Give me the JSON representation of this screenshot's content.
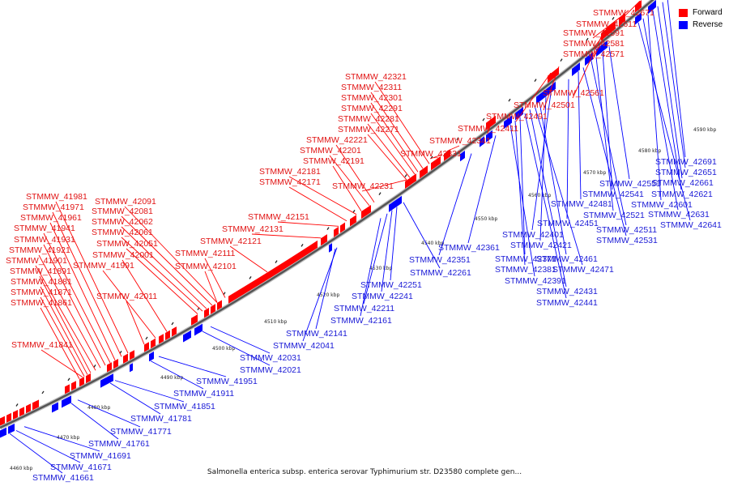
{
  "caption": "Salmonella enterica subsp. enterica serovar Typhimurium str. D23580 complete gen...",
  "legend": [
    {
      "label": "Forward",
      "color": "#ff0000"
    },
    {
      "label": "Reverse",
      "color": "#0000ff"
    }
  ],
  "colors": {
    "forward": "#ff0000",
    "reverse": "#0000ff",
    "forward_text": "#e11414",
    "reverse_text": "#1a1ad6",
    "backbone": "#555555"
  },
  "axis_ticks": [
    "4460 kbp",
    "4470 kbp",
    "4480 kbp",
    "4490 kbp",
    "4500 kbp",
    "4510 kbp",
    "4520 kbp",
    "4530 kbp",
    "4540 kbp",
    "4550 kbp",
    "4560 kbp",
    "4570 kbp",
    "4580 kbp",
    "4590 kbp"
  ],
  "forward_labels": [
    "STMMW_42671",
    "STMMW_42611",
    "STMMW_42591",
    "STMMW_42581",
    "STMMW_42571",
    "STMMW_42561",
    "STMMW_42501",
    "STMMW_42491",
    "STMMW_42411",
    "STMMW_42341",
    "STMMW_42331",
    "STMMW_42321",
    "STMMW_42311",
    "STMMW_42301",
    "STMMW_42291",
    "STMMW_42281",
    "STMMW_42271",
    "STMMW_42221",
    "STMMW_42201",
    "STMMW_42191",
    "STMMW_42181",
    "STMMW_42171",
    "STMMW_42231",
    "STMMW_42151",
    "STMMW_42131",
    "STMMW_42121",
    "STMMW_42111",
    "STMMW_42101",
    "STMMW_42091",
    "STMMW_42081",
    "STMMW_42062",
    "STMMW_42061",
    "STMMW_42051",
    "STMMW_42001",
    "STMMW_41991",
    "STMMW_42011",
    "STMMW_41981",
    "STMMW_41971",
    "STMMW_41961",
    "STMMW_41941",
    "STMMW_41931",
    "STMMW_41921",
    "STMMW_41901",
    "STMMW_41891",
    "STMMW_41881",
    "STMMW_41871",
    "STMMW_41861",
    "STMMW_41841"
  ],
  "reverse_labels": [
    "STMMW_42691",
    "STMMW_42651",
    "STMMW_42661",
    "STMMW_42621",
    "STMMW_42601",
    "STMMW_42631",
    "STMMW_42641",
    "STMMW_42551",
    "STMMW_42541",
    "STMMW_42521",
    "STMMW_42511",
    "STMMW_42531",
    "STMMW_42481",
    "STMMW_42451",
    "STMMW_42401",
    "STMMW_42421",
    "STMMW_42461",
    "STMMW_42471",
    "STMMW_42431",
    "STMMW_42441",
    "STMMW_42371",
    "STMMW_42381",
    "STMMW_42391",
    "STMMW_42361",
    "STMMW_42351",
    "STMMW_42261",
    "STMMW_42251",
    "STMMW_42241",
    "STMMW_42211",
    "STMMW_42161",
    "STMMW_42141",
    "STMMW_42041",
    "STMMW_42031",
    "STMMW_42021",
    "STMMW_41951",
    "STMMW_41911",
    "STMMW_41851",
    "STMMW_41781",
    "STMMW_41771",
    "STMMW_41761",
    "STMMW_41691",
    "STMMW_41671",
    "STMMW_41661"
  ]
}
